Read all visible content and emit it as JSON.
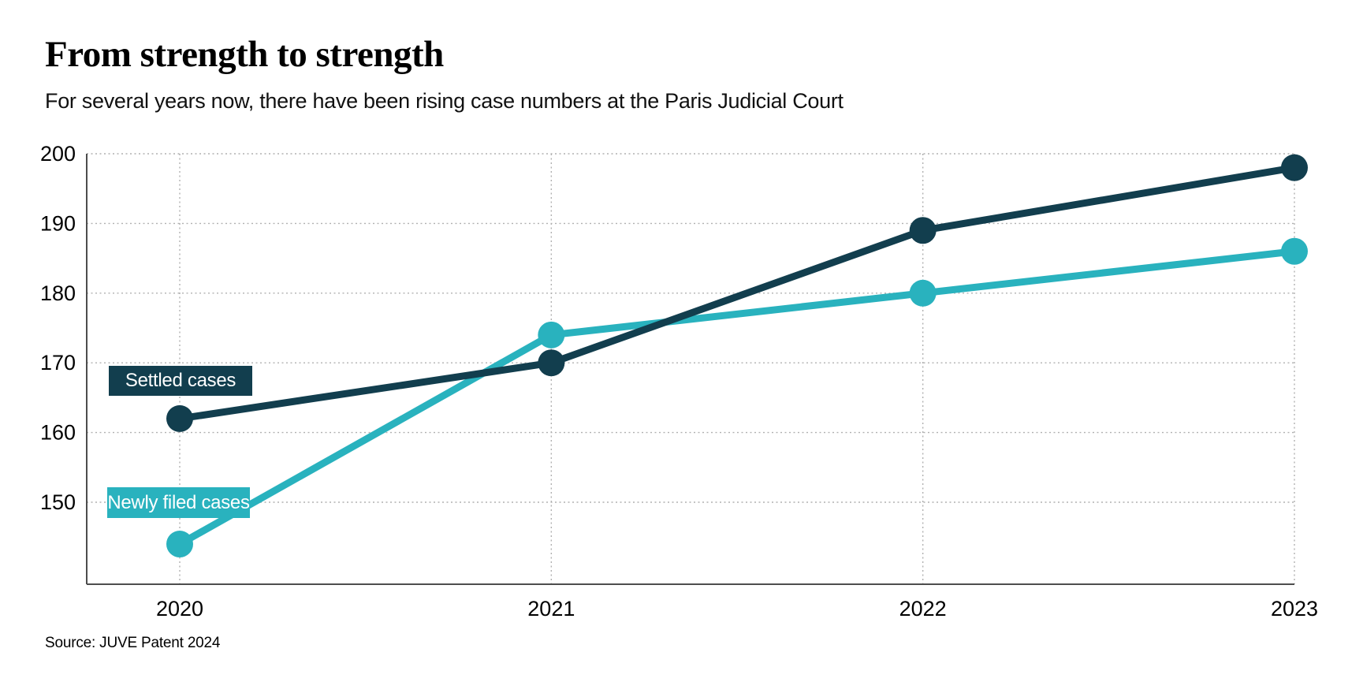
{
  "header": {
    "title": "From strength to strength",
    "subtitle": "For several years now, there have been rising case numbers at the Paris Judicial Court"
  },
  "footer": {
    "source": "Source: JUVE Patent 2024"
  },
  "chart_data": {
    "type": "line",
    "title": "From strength to strength",
    "subtitle": "For several years now, there have been rising case numbers at the Paris Judicial Court",
    "categories": [
      "2020",
      "2021",
      "2022",
      "2023"
    ],
    "series": [
      {
        "name": "Settled cases",
        "values": [
          162,
          170,
          189,
          198
        ],
        "color": "#123E4E"
      },
      {
        "name": "Newly filed cases",
        "values": [
          144,
          174,
          180,
          186
        ],
        "color": "#29B2BE"
      }
    ],
    "xlabel": "",
    "ylabel": "",
    "y_ticks": [
      200,
      190,
      180,
      170,
      160,
      150
    ],
    "ylim": [
      138,
      200
    ],
    "grid": "dotted horizontal and vertical gridlines",
    "legend_position": "inline labeled boxes near the 2020 data points",
    "marker": "filled circles on each data point"
  },
  "colors": {
    "settled": "#123E4E",
    "newly_filed": "#29B2BE",
    "grid": "#b0b0b0",
    "axis": "#4d4d4d",
    "text": "#000000",
    "legend_text": "#ffffff",
    "background": "#ffffff"
  }
}
